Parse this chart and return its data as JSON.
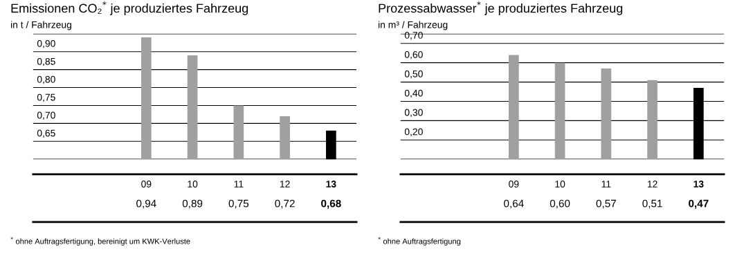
{
  "chart_data": [
    {
      "type": "bar",
      "title": "Emissionen CO₂$^{*}$ je produziertes Fahrzeug",
      "ylabel": "in t / Fahrzeug",
      "categories": [
        "09",
        "10",
        "11",
        "12",
        "13"
      ],
      "values": [
        0.94,
        0.89,
        0.75,
        0.72,
        0.68
      ],
      "colors": [
        "#a0a0a0",
        "#a0a0a0",
        "#a0a0a0",
        "#a0a0a0",
        "#000000"
      ],
      "value_labels": [
        "0,94",
        "0,89",
        "0,75",
        "0,72",
        "0,68"
      ],
      "ylim": [
        0.6,
        0.95
      ],
      "yticks": [
        "0,65",
        "0,70",
        "0,75",
        "0,80",
        "0,85",
        "0,90"
      ],
      "grid": "y",
      "annotations": [
        "$^{*}$ ohne Auftragsfertigung, bereinigt um KWK-Verluste"
      ]
    },
    {
      "type": "bar",
      "title": "Prozessabwasser$^{*}$ je produziertes Fahrzeug",
      "ylabel": "in m³ / Fahrzeug",
      "categories": [
        "09",
        "10",
        "11",
        "12",
        "13"
      ],
      "values": [
        0.64,
        0.6,
        0.57,
        0.51,
        0.47
      ],
      "colors": [
        "#a0a0a0",
        "#a0a0a0",
        "#a0a0a0",
        "#a0a0a0",
        "#000000"
      ],
      "value_labels": [
        "0,64",
        "0,60",
        "0,57",
        "0,51",
        "0,47"
      ],
      "ylim": [
        0.1,
        0.75
      ],
      "yticks": [
        "0,20",
        "0,30",
        "0,40",
        "0,50",
        "0,60",
        "0,70"
      ],
      "grid": "y",
      "annotations": [
        "$^{*}$ ohne Auftragsfertigung"
      ]
    }
  ]
}
